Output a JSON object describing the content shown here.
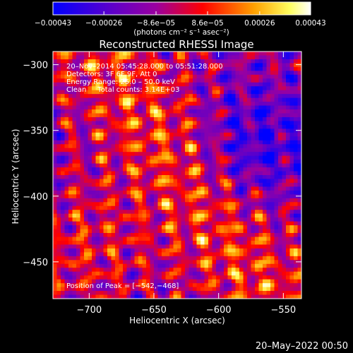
{
  "chart_data": {
    "type": "heatmap",
    "title": "Reconstructed RHESSI Image",
    "xlabel": "Heliocentric X (arcsec)",
    "ylabel": "Heliocentric Y (arcsec)",
    "xlim": [
      -728,
      -536
    ],
    "ylim": [
      -478,
      -290
    ],
    "x_ticks": [
      -700,
      -650,
      -600,
      -550
    ],
    "y_ticks": [
      -450,
      -400,
      -350,
      -300
    ],
    "x_tick_labels": [
      "−700",
      "−650",
      "−600",
      "−550"
    ],
    "y_tick_labels": [
      "−450",
      "−400",
      "−350",
      "−300"
    ],
    "grid": false,
    "colorbar": {
      "range": [
        -0.00043,
        0.00043
      ],
      "tick_values": [
        -0.00043,
        -0.00026,
        -8.6e-05,
        8.6e-05,
        0.00026,
        0.00043
      ],
      "tick_labels": [
        "−0.00043",
        "−0.00026",
        "−8.6e−05",
        "8.6e−05",
        "0.00026",
        "0.00043"
      ],
      "unit_label": "(photons cm⁻² s⁻¹ asec⁻²)",
      "colors": [
        "#0000ff",
        "#5a00cc",
        "#9a00a0",
        "#ff0000",
        "#ffa000",
        "#ffff60",
        "#ffffff"
      ]
    },
    "annotations": [
      "20–Nov–2014 05:45:28.000 to 05:51:28.000",
      "Detectors: 3F 6F 9F, Att 0",
      "Energy Range: 25.0 – 50.0 keV",
      "Clean     Total counts: 3.14E+03"
    ],
    "peak_label": "Position of Peak = [−542,−468]",
    "peak_position": [
      -542,
      -468
    ]
  },
  "footer": {
    "timestamp": "20–May–2022 00:50"
  }
}
